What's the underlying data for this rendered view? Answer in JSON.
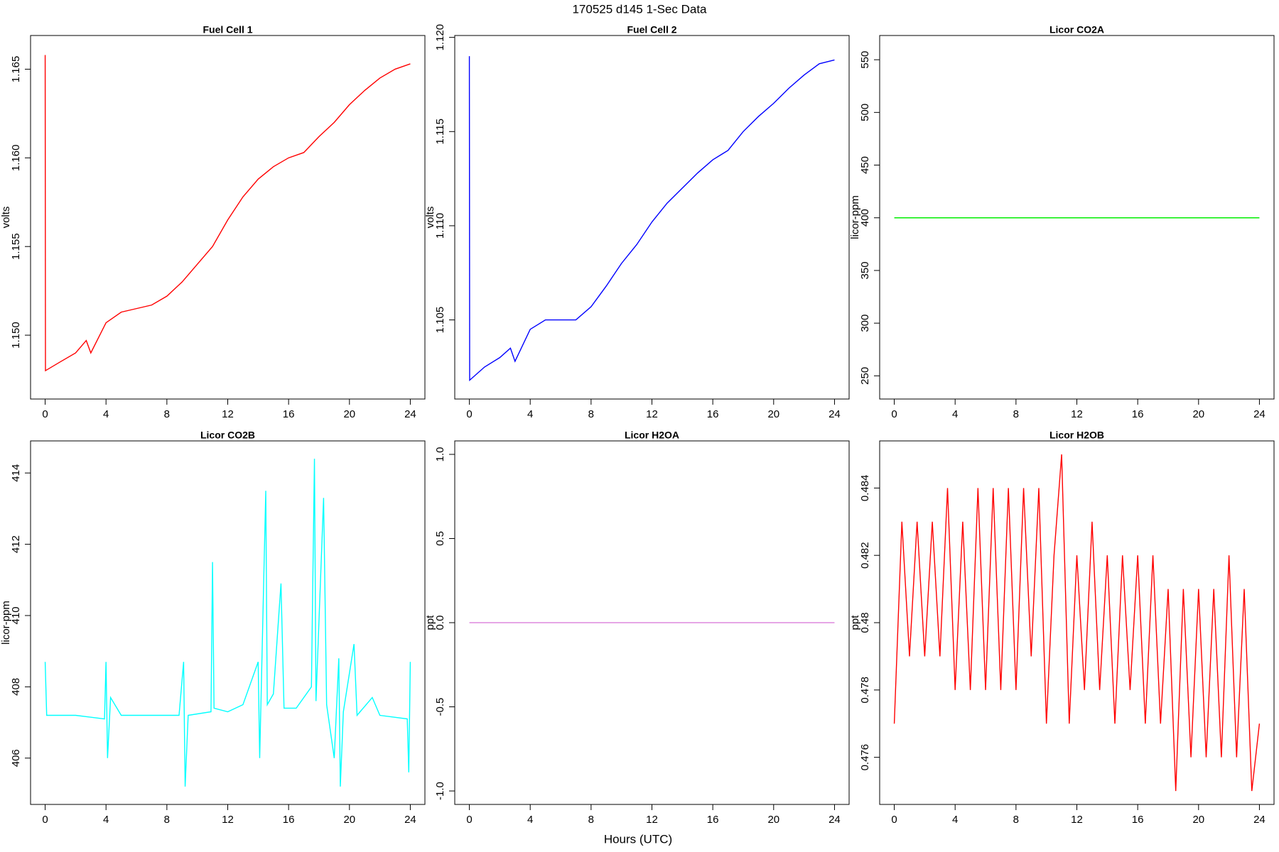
{
  "title": "170525   d145   1-Sec Data",
  "xlabel": "Hours (UTC)",
  "chart_data": [
    {
      "type": "line",
      "title": "Fuel Cell 1",
      "ylabel": "volts",
      "color": "#ff0000",
      "x": [
        0,
        0.02,
        1,
        2,
        2.7,
        3,
        4,
        5,
        6,
        7,
        8,
        9,
        10,
        11,
        12,
        13,
        14,
        15,
        16,
        17,
        18,
        19,
        20,
        21,
        22,
        23,
        24
      ],
      "values": [
        1.1658,
        1.148,
        1.1485,
        1.149,
        1.1497,
        1.149,
        1.1507,
        1.1513,
        1.1515,
        1.1517,
        1.1522,
        1.153,
        1.154,
        1.155,
        1.1565,
        1.1578,
        1.1588,
        1.1595,
        1.16,
        1.1603,
        1.1612,
        1.162,
        1.163,
        1.1638,
        1.1645,
        1.165,
        1.1653
      ],
      "xlim": [
        -0.96,
        24.96
      ],
      "xticks": [
        0,
        4,
        8,
        12,
        16,
        20,
        24
      ],
      "ylim": [
        1.1464,
        1.1669
      ],
      "yticks": [
        {
          "value": 1.15,
          "label": "1.150"
        },
        1.155,
        {
          "value": 1.16,
          "label": "1.160"
        },
        1.165
      ]
    },
    {
      "type": "line",
      "title": "Fuel Cell 2",
      "ylabel": "volts",
      "color": "#0000ff",
      "x": [
        0,
        0.02,
        1,
        2,
        2.7,
        3,
        4,
        5,
        6,
        7,
        8,
        9,
        10,
        11,
        12,
        13,
        14,
        15,
        16,
        17,
        18,
        19,
        20,
        21,
        22,
        23,
        24
      ],
      "values": [
        1.119,
        1.1018,
        1.1025,
        1.103,
        1.1035,
        1.1028,
        1.1045,
        1.105,
        1.105,
        1.105,
        1.1057,
        1.1068,
        1.108,
        1.109,
        1.1102,
        1.1112,
        1.112,
        1.1128,
        1.1135,
        1.114,
        1.115,
        1.1158,
        1.1165,
        1.1173,
        1.118,
        1.1186,
        1.1188
      ],
      "xlim": [
        -0.96,
        24.96
      ],
      "xticks": [
        0,
        4,
        8,
        12,
        16,
        20,
        24
      ],
      "ylim": [
        1.1008,
        1.1201
      ],
      "yticks": [
        1.105,
        {
          "value": 1.11,
          "label": "1.110"
        },
        1.115,
        {
          "value": 1.12,
          "label": "1.120"
        }
      ]
    },
    {
      "type": "line",
      "title": "Licor CO2A",
      "ylabel": "licor-ppm",
      "color": "#00ee00",
      "x": [
        0,
        24
      ],
      "values": [
        400,
        400
      ],
      "xlim": [
        -0.96,
        24.96
      ],
      "xticks": [
        0,
        4,
        8,
        12,
        16,
        20,
        24
      ],
      "ylim": [
        228,
        573
      ],
      "yticks": [
        250,
        300,
        350,
        400,
        450,
        500,
        550
      ]
    },
    {
      "type": "line",
      "title": "Licor CO2B",
      "ylabel": "licor-ppm",
      "color": "#00ffff",
      "x": [
        0,
        0.1,
        2,
        3.9,
        4,
        4.1,
        4.3,
        5,
        8.8,
        9.1,
        9.2,
        9.4,
        10.9,
        11,
        11.1,
        12,
        13,
        14,
        14.1,
        14.5,
        14.6,
        15,
        15.5,
        15.7,
        16.5,
        17.5,
        17.7,
        17.8,
        18.3,
        18.5,
        19,
        19.3,
        19.4,
        19.6,
        20.3,
        20.5,
        21.5,
        22,
        23.8,
        23.9,
        24
      ],
      "values": [
        408.7,
        407.2,
        407.2,
        407.1,
        408.7,
        406.0,
        407.7,
        407.2,
        407.2,
        408.7,
        405.2,
        407.2,
        407.3,
        411.5,
        407.4,
        407.3,
        407.5,
        408.7,
        406.0,
        413.5,
        407.5,
        407.8,
        410.9,
        407.4,
        407.4,
        408.0,
        414.4,
        407.6,
        413.3,
        407.5,
        406.0,
        408.8,
        405.2,
        407.3,
        409.2,
        407.2,
        407.7,
        407.2,
        407.1,
        405.6,
        408.7
      ],
      "xlim": [
        -0.96,
        24.96
      ],
      "xticks": [
        0,
        4,
        8,
        12,
        16,
        20,
        24
      ],
      "ylim": [
        404.7,
        414.9
      ],
      "yticks": [
        406,
        408,
        410,
        412,
        414
      ]
    },
    {
      "type": "line",
      "title": "Licor H2OA",
      "ylabel": "ppt",
      "color": "#dd88dd",
      "x": [
        0,
        24
      ],
      "values": [
        0,
        0
      ],
      "xlim": [
        -0.96,
        24.96
      ],
      "xticks": [
        0,
        4,
        8,
        12,
        16,
        20,
        24
      ],
      "ylim": [
        -1.08,
        1.08
      ],
      "yticks": [
        {
          "value": -1,
          "label": "-1.0"
        },
        -0.5,
        {
          "value": 0,
          "label": "0.0"
        },
        0.5,
        {
          "value": 1,
          "label": "1.0"
        }
      ]
    },
    {
      "type": "line",
      "title": "Licor H2OB",
      "ylabel": "ppt",
      "color": "#ff0000",
      "x": [
        0,
        0.5,
        1,
        1.5,
        2,
        2.5,
        3,
        3.5,
        4,
        4.5,
        5,
        5.5,
        6,
        6.5,
        7,
        7.5,
        8,
        8.5,
        9,
        9.5,
        10,
        10.5,
        11,
        11.5,
        12,
        12.5,
        13,
        13.5,
        14,
        14.5,
        15,
        15.5,
        16,
        16.5,
        17,
        17.5,
        18,
        18.5,
        19,
        19.5,
        20,
        20.5,
        21,
        21.5,
        22,
        22.5,
        23,
        23.5,
        24
      ],
      "values": [
        0.477,
        0.483,
        0.479,
        0.483,
        0.479,
        0.483,
        0.479,
        0.484,
        0.478,
        0.483,
        0.478,
        0.484,
        0.478,
        0.484,
        0.478,
        0.484,
        0.478,
        0.484,
        0.479,
        0.484,
        0.477,
        0.482,
        0.485,
        0.477,
        0.482,
        0.478,
        0.483,
        0.478,
        0.482,
        0.477,
        0.482,
        0.478,
        0.482,
        0.477,
        0.482,
        0.477,
        0.481,
        0.475,
        0.481,
        0.476,
        0.481,
        0.476,
        0.481,
        0.476,
        0.482,
        0.476,
        0.481,
        0.475,
        0.477
      ],
      "xlim": [
        -0.96,
        24.96
      ],
      "xticks": [
        0,
        4,
        8,
        12,
        16,
        20,
        24
      ],
      "ylim": [
        0.4746,
        0.4854
      ],
      "yticks": [
        0.476,
        0.478,
        0.48,
        0.482,
        0.484
      ]
    }
  ]
}
